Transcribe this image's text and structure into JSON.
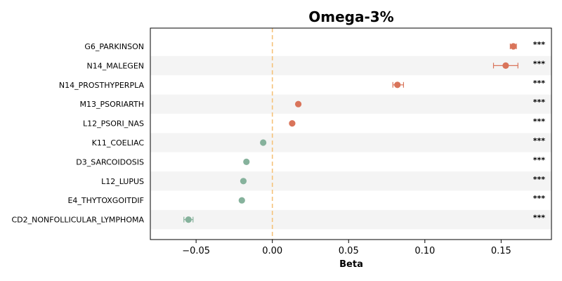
{
  "chart_data": {
    "type": "scatter",
    "title": "Omega-3%",
    "xlabel": "Beta",
    "ylabel": "",
    "xlim": [
      -0.08,
      0.183
    ],
    "xticks": [
      -0.05,
      0.0,
      0.05,
      0.1,
      0.15
    ],
    "xtick_labels": [
      "−0.05",
      "0.00",
      "0.05",
      "0.10",
      "0.15"
    ],
    "reference_line": 0.0,
    "significance_marker": "***",
    "colors": {
      "positive": "#d9745a",
      "negative": "#86b29c",
      "reference": "#f5c27a",
      "band": "#f4f4f4"
    },
    "categories": [
      {
        "label": "G6_PARKINSON",
        "beta": 0.158,
        "ci": [
          0.156,
          0.16
        ],
        "sig": "***"
      },
      {
        "label": "N14_MALEGEN",
        "beta": 0.153,
        "ci": [
          0.145,
          0.161
        ],
        "sig": "***"
      },
      {
        "label": "N14_PROSTHYPERPLA",
        "beta": 0.082,
        "ci": [
          0.079,
          0.086
        ],
        "sig": "***"
      },
      {
        "label": "M13_PSORIARTH",
        "beta": 0.017,
        "ci": [
          0.0165,
          0.0175
        ],
        "sig": "***"
      },
      {
        "label": "L12_PSORI_NAS",
        "beta": 0.013,
        "ci": [
          0.0125,
          0.0135
        ],
        "sig": "***"
      },
      {
        "label": "K11_COELIAC",
        "beta": -0.006,
        "ci": [
          -0.0065,
          -0.0055
        ],
        "sig": "***"
      },
      {
        "label": "D3_SARCOIDOSIS",
        "beta": -0.017,
        "ci": [
          -0.0175,
          -0.0165
        ],
        "sig": "***"
      },
      {
        "label": "L12_LUPUS",
        "beta": -0.019,
        "ci": [
          -0.0195,
          -0.0185
        ],
        "sig": "***"
      },
      {
        "label": "E4_THYTOXGOITDIF",
        "beta": -0.02,
        "ci": [
          -0.0205,
          -0.0195
        ],
        "sig": "***"
      },
      {
        "label": "CD2_NONFOLLICULAR_LYMPHOMA",
        "beta": -0.055,
        "ci": [
          -0.058,
          -0.052
        ],
        "sig": "***"
      }
    ]
  }
}
